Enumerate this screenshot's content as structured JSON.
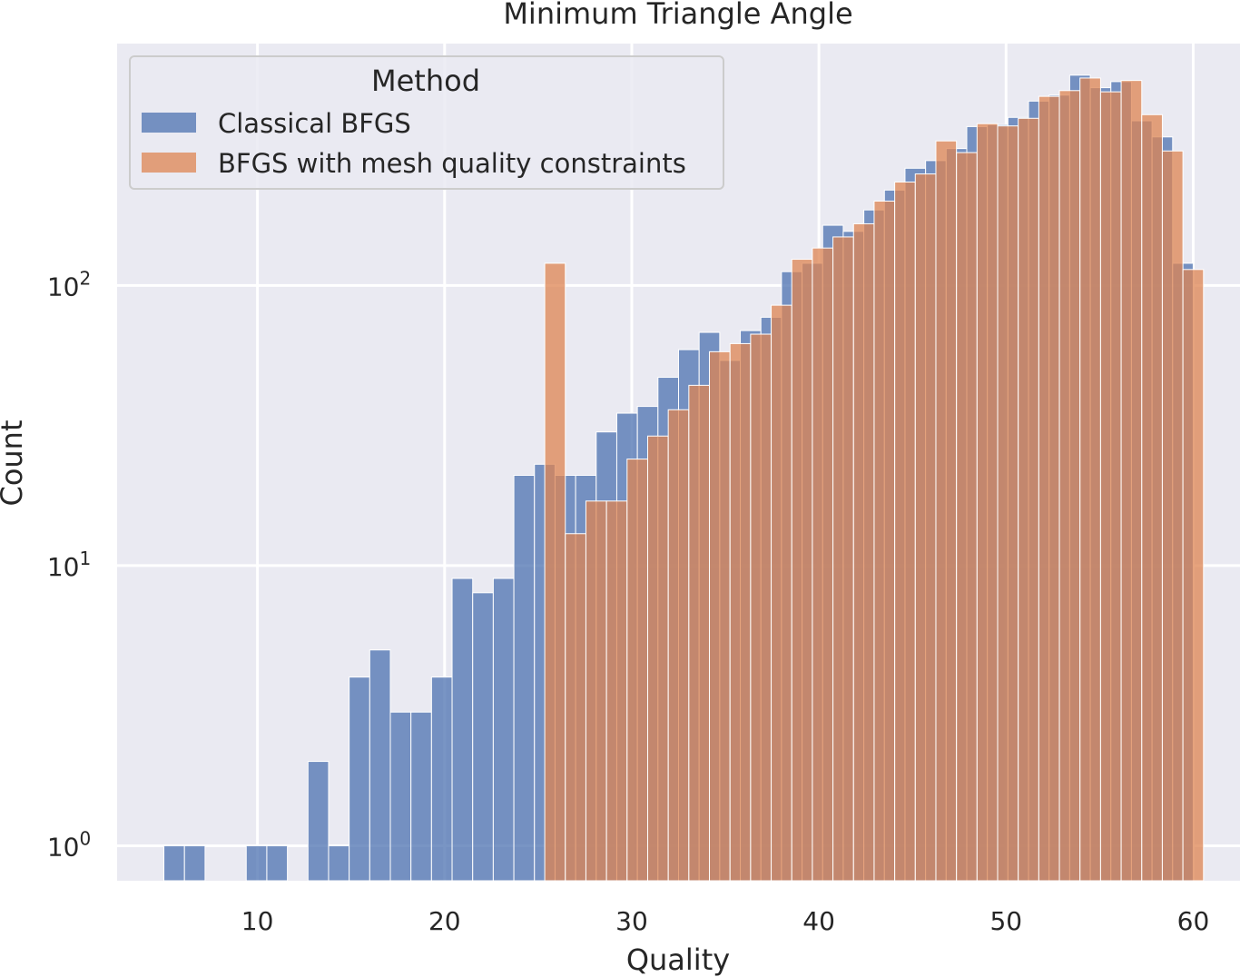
{
  "chart_data": {
    "type": "bar",
    "title": "Minimum Triangle Angle",
    "xlabel": "Quality",
    "ylabel": "Count",
    "yscale": "log",
    "xlim": [
      2.5,
      62.5
    ],
    "ylim": [
      0.75,
      730
    ],
    "xticks": [
      10,
      20,
      30,
      40,
      50,
      60
    ],
    "yticks": [
      {
        "value": 1,
        "base": "10",
        "exp": "0"
      },
      {
        "value": 10,
        "base": "10",
        "exp": "1"
      },
      {
        "value": 100,
        "base": "10",
        "exp": "2"
      }
    ],
    "grid": true,
    "legend": {
      "title": "Method",
      "placement": "top-left"
    },
    "series": [
      {
        "name": "Classical BFGS",
        "color": "#4c72b0",
        "bins": [
          {
            "x": 5.55,
            "y": 1
          },
          {
            "x": 6.65,
            "y": 1
          },
          {
            "x": 9.95,
            "y": 1
          },
          {
            "x": 11.05,
            "y": 1
          },
          {
            "x": 13.25,
            "y": 2
          },
          {
            "x": 14.35,
            "y": 1
          },
          {
            "x": 15.45,
            "y": 4
          },
          {
            "x": 16.55,
            "y": 5
          },
          {
            "x": 17.65,
            "y": 3
          },
          {
            "x": 18.75,
            "y": 3
          },
          {
            "x": 19.85,
            "y": 4
          },
          {
            "x": 20.95,
            "y": 9
          },
          {
            "x": 22.05,
            "y": 8
          },
          {
            "x": 23.15,
            "y": 9
          },
          {
            "x": 24.25,
            "y": 21
          },
          {
            "x": 25.35,
            "y": 23
          },
          {
            "x": 26.45,
            "y": 21
          },
          {
            "x": 27.55,
            "y": 21
          },
          {
            "x": 28.65,
            "y": 30
          },
          {
            "x": 29.75,
            "y": 35
          },
          {
            "x": 30.85,
            "y": 37
          },
          {
            "x": 31.95,
            "y": 47
          },
          {
            "x": 33.05,
            "y": 59
          },
          {
            "x": 34.15,
            "y": 68
          },
          {
            "x": 35.25,
            "y": 54
          },
          {
            "x": 36.35,
            "y": 69
          },
          {
            "x": 37.45,
            "y": 77
          },
          {
            "x": 38.55,
            "y": 112
          },
          {
            "x": 39.65,
            "y": 120
          },
          {
            "x": 40.75,
            "y": 164
          },
          {
            "x": 41.85,
            "y": 156
          },
          {
            "x": 42.95,
            "y": 186
          },
          {
            "x": 44.05,
            "y": 219
          },
          {
            "x": 45.15,
            "y": 262
          },
          {
            "x": 46.25,
            "y": 279
          },
          {
            "x": 47.35,
            "y": 308
          },
          {
            "x": 48.45,
            "y": 369
          },
          {
            "x": 49.55,
            "y": 375
          },
          {
            "x": 50.65,
            "y": 398
          },
          {
            "x": 51.75,
            "y": 455
          },
          {
            "x": 52.85,
            "y": 478
          },
          {
            "x": 53.95,
            "y": 563
          },
          {
            "x": 55.05,
            "y": 508
          },
          {
            "x": 56.15,
            "y": 534
          },
          {
            "x": 57.25,
            "y": 387
          },
          {
            "x": 58.35,
            "y": 339
          },
          {
            "x": 59.45,
            "y": 120
          }
        ]
      },
      {
        "name": "BFGS with mesh quality constraints",
        "color": "#dd8452",
        "bins": [
          {
            "x": 25.9,
            "y": 120
          },
          {
            "x": 27.0,
            "y": 13
          },
          {
            "x": 28.1,
            "y": 17
          },
          {
            "x": 29.2,
            "y": 17
          },
          {
            "x": 30.3,
            "y": 24
          },
          {
            "x": 31.4,
            "y": 29
          },
          {
            "x": 32.5,
            "y": 36
          },
          {
            "x": 33.6,
            "y": 44
          },
          {
            "x": 34.7,
            "y": 58
          },
          {
            "x": 35.8,
            "y": 62
          },
          {
            "x": 36.9,
            "y": 67
          },
          {
            "x": 38.0,
            "y": 85
          },
          {
            "x": 39.1,
            "y": 124
          },
          {
            "x": 40.2,
            "y": 136
          },
          {
            "x": 41.3,
            "y": 149
          },
          {
            "x": 42.4,
            "y": 166
          },
          {
            "x": 43.5,
            "y": 200
          },
          {
            "x": 44.6,
            "y": 234
          },
          {
            "x": 45.7,
            "y": 250
          },
          {
            "x": 46.8,
            "y": 328
          },
          {
            "x": 47.9,
            "y": 298
          },
          {
            "x": 49.0,
            "y": 378
          },
          {
            "x": 50.1,
            "y": 371
          },
          {
            "x": 51.2,
            "y": 395
          },
          {
            "x": 52.3,
            "y": 473
          },
          {
            "x": 53.4,
            "y": 496
          },
          {
            "x": 54.5,
            "y": 550
          },
          {
            "x": 55.6,
            "y": 491
          },
          {
            "x": 56.7,
            "y": 539
          },
          {
            "x": 57.8,
            "y": 407
          },
          {
            "x": 58.9,
            "y": 302
          },
          {
            "x": 60.0,
            "y": 114
          }
        ]
      }
    ]
  }
}
